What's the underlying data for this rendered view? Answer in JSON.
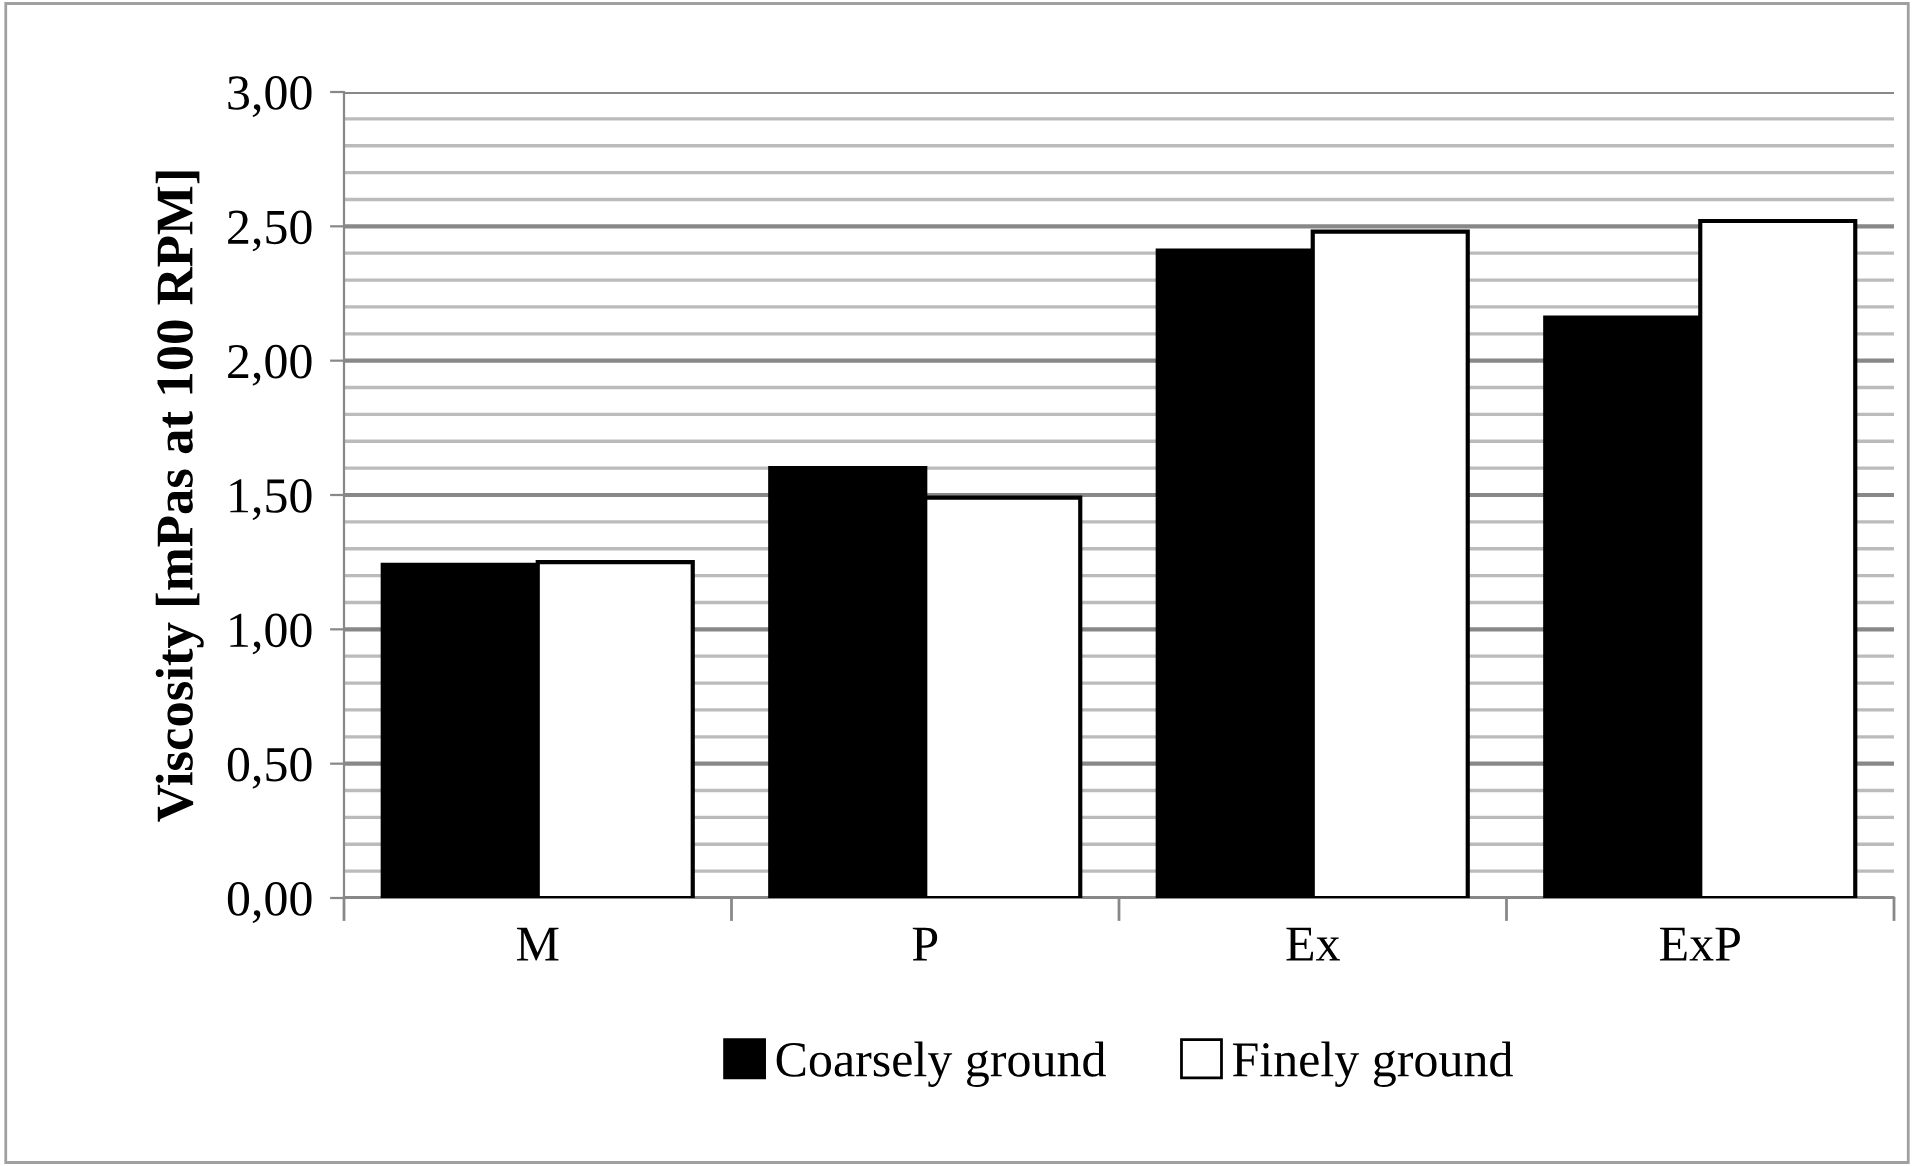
{
  "chart_data": {
    "type": "bar",
    "ylabel": "Viscosity [mPas at 100 RPM]",
    "categories": [
      "M",
      "P",
      "Ex",
      "ExP"
    ],
    "series": [
      {
        "name": "Coarsely ground",
        "color": "#000000",
        "values": [
          1.24,
          1.6,
          2.41,
          2.16
        ]
      },
      {
        "name": "Finely ground",
        "color": "#ffffff",
        "values": [
          1.25,
          1.49,
          2.48,
          2.52
        ]
      }
    ],
    "ylim": [
      0,
      3
    ],
    "yticks": [
      "0,00",
      {
        "value": 0.1,
        "label": null
      },
      {
        "value": 0.2,
        "label": null
      },
      {
        "value": 0.3,
        "label": null
      },
      {
        "value": 0.4,
        "label": null
      },
      {
        "value": 0.5,
        "label": "0,50"
      },
      {
        "value": 0.6,
        "label": null
      },
      {
        "value": 0.7,
        "label": null
      },
      {
        "value": 0.8,
        "label": null
      },
      {
        "value": 0.9,
        "label": null
      },
      {
        "value": 1,
        "label": "1,00"
      },
      {
        "value": 1.1,
        "label": null
      },
      {
        "value": 1.2,
        "label": null
      },
      {
        "value": 1.3,
        "label": null
      },
      {
        "value": 1.4,
        "label": null
      },
      {
        "value": 1.5,
        "label": "1,50"
      },
      {
        "value": 1.6,
        "label": null
      },
      {
        "value": 1.7,
        "label": null
      },
      {
        "value": 1.8,
        "label": null
      },
      {
        "value": 1.9,
        "label": null
      },
      {
        "value": 2,
        "label": "2,00"
      },
      {
        "value": 2.1,
        "label": null
      },
      {
        "value": 2.2,
        "label": null
      },
      {
        "value": 2.3,
        "label": null
      },
      {
        "value": 2.4,
        "label": null
      },
      {
        "value": 2.5,
        "label": "2,50"
      },
      {
        "value": 2.6,
        "label": null
      },
      {
        "value": 2.7,
        "label": null
      },
      {
        "value": 2.8,
        "label": null
      },
      {
        "value": 2.9,
        "label": null
      },
      {
        "value": 3,
        "label": "3,00"
      }
    ],
    "grid": "y",
    "legend": "bottom"
  }
}
